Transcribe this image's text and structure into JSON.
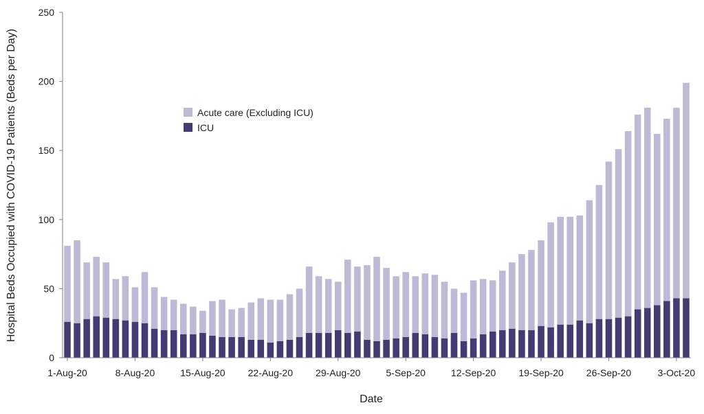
{
  "chart_data": {
    "type": "bar",
    "stacked": true,
    "xlabel": "Date",
    "ylabel": "Hospital Beds Occupied with COVID-19 Patients (Beds per Day)",
    "ylim": [
      0,
      250
    ],
    "yticks": [
      0,
      50,
      100,
      150,
      200,
      250
    ],
    "grid": false,
    "legend_position": "upper-left-center",
    "x_tick_labels": [
      {
        "index": 0,
        "label": "1-Aug-20"
      },
      {
        "index": 7,
        "label": "8-Aug-20"
      },
      {
        "index": 14,
        "label": "15-Aug-20"
      },
      {
        "index": 21,
        "label": "22-Aug-20"
      },
      {
        "index": 28,
        "label": "29-Aug-20"
      },
      {
        "index": 35,
        "label": "5-Sep-20"
      },
      {
        "index": 42,
        "label": "12-Sep-20"
      },
      {
        "index": 49,
        "label": "19-Sep-20"
      },
      {
        "index": 56,
        "label": "26-Sep-20"
      },
      {
        "index": 63,
        "label": "3-Oct-20"
      }
    ],
    "series": [
      {
        "name": "ICU",
        "color": "#433c73",
        "values": [
          26,
          25,
          28,
          30,
          29,
          28,
          27,
          26,
          25,
          21,
          20,
          20,
          17,
          17,
          18,
          16,
          15,
          15,
          15,
          13,
          13,
          11,
          12,
          13,
          15,
          18,
          18,
          18,
          20,
          18,
          19,
          13,
          12,
          13,
          14,
          15,
          18,
          17,
          15,
          14,
          18,
          12,
          14,
          17,
          19,
          20,
          21,
          20,
          20,
          23,
          22,
          24,
          24,
          27,
          25,
          28,
          28,
          29,
          30,
          35,
          36,
          38,
          41,
          43,
          43
        ]
      },
      {
        "name": "Acute care (Excluding ICU)",
        "color": "#bebad6",
        "values": [
          55,
          60,
          41,
          43,
          40,
          29,
          32,
          25,
          37,
          30,
          24,
          22,
          22,
          20,
          16,
          25,
          27,
          20,
          21,
          27,
          30,
          31,
          30,
          33,
          35,
          48,
          41,
          39,
          35,
          53,
          47,
          54,
          61,
          52,
          45,
          47,
          41,
          44,
          45,
          41,
          32,
          35,
          42,
          40,
          37,
          43,
          48,
          55,
          58,
          62,
          76,
          78,
          78,
          76,
          89,
          97,
          114,
          122,
          134,
          141,
          145,
          124,
          132,
          138,
          156
        ]
      }
    ]
  }
}
